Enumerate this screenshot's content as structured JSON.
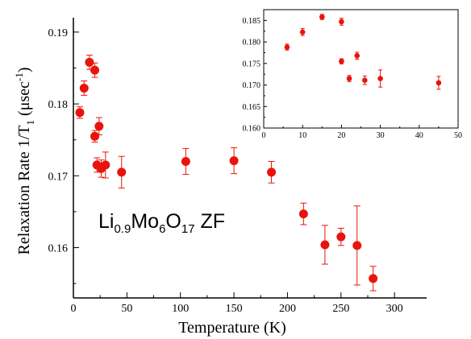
{
  "chart_data": [
    {
      "type": "scatter",
      "xlabel": "Temperature (K)",
      "ylabel_main": "Relaxation Rate 1/T",
      "ylabel_sub": "1",
      "ylabel_unit": " (μsec",
      "ylabel_unit_sup": "-1",
      "ylabel_close": ")",
      "annotation": {
        "parts": [
          "Li",
          "0.9",
          "Mo",
          "6",
          "O",
          "17",
          " ZF"
        ]
      },
      "xlim": [
        0,
        330
      ],
      "ylim": [
        0.153,
        0.192
      ],
      "x_ticks": [
        0,
        50,
        100,
        150,
        200,
        250,
        300
      ],
      "y_ticks": [
        0.16,
        0.17,
        0.18,
        0.19
      ],
      "color": "#e8140c",
      "series": [
        {
          "points": [
            {
              "x": 6,
              "y": 0.1788,
              "err": 0.0008
            },
            {
              "x": 10,
              "y": 0.1822,
              "err": 0.001
            },
            {
              "x": 15,
              "y": 0.1858,
              "err": 0.001
            },
            {
              "x": 20,
              "y": 0.1847,
              "err": 0.001
            },
            {
              "x": 20,
              "y": 0.1755,
              "err": 0.0008
            },
            {
              "x": 22,
              "y": 0.1715,
              "err": 0.001
            },
            {
              "x": 24,
              "y": 0.1769,
              "err": 0.0012
            },
            {
              "x": 26,
              "y": 0.171,
              "err": 0.0012
            },
            {
              "x": 30,
              "y": 0.1715,
              "err": 0.0018
            },
            {
              "x": 45,
              "y": 0.1705,
              "err": 0.0022
            },
            {
              "x": 105,
              "y": 0.172,
              "err": 0.0018
            },
            {
              "x": 150,
              "y": 0.1721,
              "err": 0.0018
            },
            {
              "x": 185,
              "y": 0.1705,
              "err": 0.0015
            },
            {
              "x": 215,
              "y": 0.1647,
              "err": 0.0015
            },
            {
              "x": 235,
              "y": 0.1604,
              "err": 0.0027
            },
            {
              "x": 250,
              "y": 0.1615,
              "err": 0.0012
            },
            {
              "x": 265,
              "y": 0.1603,
              "err": 0.0055
            },
            {
              "x": 280,
              "y": 0.1557,
              "err": 0.0017
            }
          ]
        }
      ]
    },
    {
      "type": "scatter",
      "role": "inset",
      "xlim": [
        0,
        50
      ],
      "ylim": [
        0.16,
        0.1875
      ],
      "x_ticks": [
        0,
        10,
        20,
        30,
        40,
        50
      ],
      "y_ticks": [
        0.16,
        0.165,
        0.17,
        0.175,
        0.18,
        0.185
      ],
      "y_tick_labels": [
        "0.160",
        "0.165",
        "0.170",
        "0.175",
        "0.180",
        "0.185"
      ],
      "color": "#e8140c",
      "series": [
        {
          "points": [
            {
              "x": 6,
              "y": 0.1788,
              "err": 0.0007
            },
            {
              "x": 10,
              "y": 0.1823,
              "err": 0.0008
            },
            {
              "x": 15,
              "y": 0.1858,
              "err": 0.0006
            },
            {
              "x": 20,
              "y": 0.1847,
              "err": 0.0008
            },
            {
              "x": 20,
              "y": 0.1755,
              "err": 0.0006
            },
            {
              "x": 22,
              "y": 0.1715,
              "err": 0.0007
            },
            {
              "x": 24,
              "y": 0.1768,
              "err": 0.0008
            },
            {
              "x": 26,
              "y": 0.1711,
              "err": 0.001
            },
            {
              "x": 30,
              "y": 0.1715,
              "err": 0.002
            },
            {
              "x": 45,
              "y": 0.1705,
              "err": 0.0015
            }
          ]
        }
      ]
    }
  ]
}
